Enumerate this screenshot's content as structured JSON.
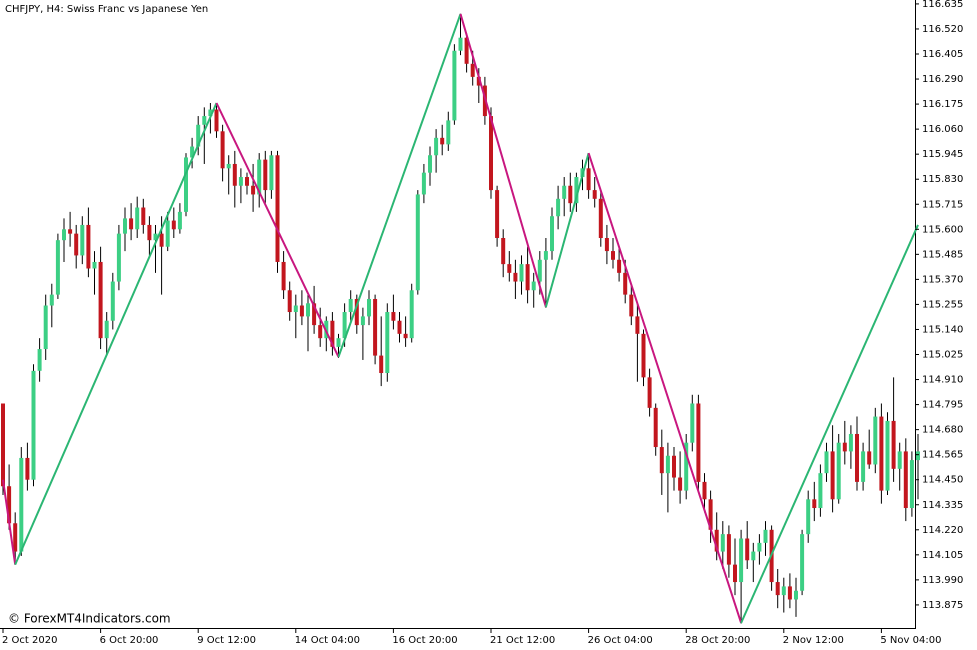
{
  "chart_data": {
    "type": "candlestick",
    "title": "CHFJPY, H4:  Swiss Franc vs Japanese Yen",
    "watermark": "© ForexMT4Indicators.com",
    "up_color": "#3ccf84",
    "down_color": "#c2161e",
    "wick_color": "#000000",
    "zigzag": {
      "up_color": "#2bb673",
      "down_color": "#c8177f",
      "x": [
        0,
        2,
        35,
        55,
        75,
        89,
        96,
        121,
        150
      ],
      "values": [
        114.45,
        114.06,
        116.18,
        115.014,
        116.589,
        115.243,
        115.95,
        113.792,
        115.62
      ]
    },
    "categories": [
      "2 Oct 2020",
      null,
      null,
      null,
      null,
      null,
      null,
      null,
      null,
      null,
      null,
      null,
      null,
      null,
      null,
      null,
      "6 Oct 20:00",
      null,
      null,
      null,
      null,
      null,
      null,
      null,
      null,
      null,
      null,
      null,
      null,
      null,
      null,
      null,
      "9 Oct 12:00",
      null,
      null,
      null,
      null,
      null,
      null,
      null,
      null,
      null,
      null,
      null,
      null,
      null,
      null,
      null,
      "14 Oct 04:00",
      null,
      null,
      null,
      null,
      null,
      null,
      null,
      null,
      null,
      null,
      null,
      null,
      null,
      null,
      null,
      "16 Oct 20:00",
      null,
      null,
      null,
      null,
      null,
      null,
      null,
      null,
      null,
      null,
      null,
      null,
      null,
      null,
      null,
      "21 Oct 12:00",
      null,
      null,
      null,
      null,
      null,
      null,
      null,
      null,
      null,
      null,
      null,
      null,
      null,
      null,
      null,
      "26 Oct 04:00",
      null,
      null,
      null,
      null,
      null,
      null,
      null,
      null,
      null,
      null,
      null,
      null,
      null,
      null,
      null,
      "28 Oct 20:00",
      null,
      null,
      null,
      null,
      null,
      null,
      null,
      null,
      null,
      null,
      null,
      null,
      null,
      null,
      null,
      "2 Nov 12:00",
      null,
      null,
      null,
      null,
      null,
      null,
      null,
      null,
      null,
      null,
      null,
      null,
      null,
      null,
      null,
      "5 Nov 04:00",
      null,
      null,
      null,
      null,
      null,
      null
    ],
    "open": [
      114.8,
      114.42,
      114.25,
      114.12,
      114.55,
      114.45,
      114.95,
      115.05,
      115.25,
      115.3,
      115.55,
      115.6,
      115.58,
      115.48,
      115.62,
      115.42,
      115.45,
      115.1,
      115.18,
      115.36,
      115.58,
      115.65,
      115.6,
      115.7,
      115.62,
      115.55,
      115.58,
      115.52,
      115.64,
      115.6,
      115.68,
      115.93,
      115.98,
      116.08,
      116.12,
      116.15,
      116.05,
      115.88,
      115.9,
      115.8,
      115.84,
      115.8,
      115.76,
      115.92,
      115.78,
      115.94,
      115.45,
      115.32,
      115.22,
      115.25,
      115.2,
      115.26,
      115.16,
      115.1,
      115.18,
      115.06,
      115.1,
      115.22,
      115.28,
      115.16,
      115.2,
      115.28,
      115.02,
      114.94,
      115.22,
      115.18,
      115.12,
      115.1,
      115.32,
      115.76,
      115.86,
      115.94,
      116.02,
      115.99,
      116.1,
      116.42,
      116.48,
      116.36,
      116.3,
      116.26,
      116.12,
      115.78,
      115.56,
      115.44,
      115.4,
      115.36,
      115.44,
      115.32,
      115.36,
      115.46,
      115.5,
      115.66,
      115.74,
      115.8,
      115.72,
      115.84,
      115.88,
      115.78,
      115.74,
      115.56,
      115.5,
      115.46,
      115.4,
      115.3,
      115.2,
      115.12,
      114.92,
      114.78,
      114.6,
      114.48,
      114.56,
      114.46,
      114.4,
      114.62,
      114.8,
      114.44,
      114.36,
      114.22,
      114.12,
      114.2,
      114.06,
      113.98,
      114.18,
      114.08,
      114.12,
      114.16,
      114.22,
      113.98,
      113.92,
      113.96,
      113.9,
      113.94,
      114.2,
      114.36,
      114.32,
      114.48,
      114.58,
      114.36,
      114.62,
      114.58,
      114.66,
      114.44,
      114.58,
      114.52,
      114.74,
      114.4,
      114.72,
      114.5,
      114.58,
      114.32,
      114.54
    ],
    "high": [
      114.8,
      114.52,
      114.3,
      114.6,
      114.62,
      114.98,
      115.1,
      115.3,
      115.35,
      115.58,
      115.65,
      115.68,
      115.62,
      115.66,
      115.7,
      115.5,
      115.52,
      115.22,
      115.4,
      115.62,
      115.7,
      115.72,
      115.75,
      115.74,
      115.66,
      115.62,
      115.66,
      115.68,
      115.7,
      115.72,
      115.95,
      116.02,
      116.12,
      116.16,
      116.18,
      116.18,
      116.08,
      115.94,
      115.96,
      115.88,
      115.86,
      115.9,
      115.95,
      115.96,
      115.96,
      115.96,
      115.5,
      115.36,
      115.3,
      115.32,
      115.3,
      115.34,
      115.24,
      115.2,
      115.22,
      115.12,
      115.26,
      115.32,
      115.3,
      115.24,
      115.32,
      115.3,
      115.2,
      115.26,
      115.3,
      115.22,
      115.2,
      115.35,
      115.78,
      115.9,
      115.98,
      116.06,
      116.08,
      116.14,
      116.45,
      116.59,
      116.5,
      116.42,
      116.34,
      116.3,
      116.16,
      115.8,
      115.6,
      115.5,
      115.46,
      115.48,
      115.52,
      115.4,
      115.5,
      115.56,
      115.7,
      115.8,
      115.84,
      115.86,
      115.86,
      115.92,
      115.95,
      115.84,
      115.78,
      115.62,
      115.56,
      115.52,
      115.46,
      115.34,
      115.26,
      115.14,
      114.96,
      114.8,
      114.68,
      114.62,
      114.6,
      114.58,
      114.66,
      114.84,
      114.84,
      114.48,
      114.4,
      114.3,
      114.26,
      114.24,
      114.18,
      114.22,
      114.26,
      114.16,
      114.2,
      114.26,
      114.24,
      114.04,
      114.0,
      114.02,
      114.0,
      114.22,
      114.4,
      114.44,
      114.52,
      114.62,
      114.7,
      114.66,
      114.72,
      114.7,
      114.74,
      114.62,
      114.68,
      114.78,
      114.8,
      114.76,
      114.92,
      114.62,
      114.64,
      114.58,
      114.66
    ],
    "low": [
      114.38,
      114.22,
      114.06,
      114.1,
      114.4,
      114.42,
      114.9,
      115.0,
      115.15,
      115.28,
      115.45,
      115.52,
      115.42,
      115.44,
      115.38,
      115.3,
      115.05,
      115.02,
      115.14,
      115.32,
      115.5,
      115.55,
      115.56,
      115.58,
      115.48,
      115.4,
      115.3,
      115.5,
      115.56,
      115.58,
      115.66,
      115.88,
      115.94,
      115.9,
      116.04,
      116.02,
      115.82,
      115.76,
      115.7,
      115.72,
      115.76,
      115.68,
      115.7,
      115.72,
      115.74,
      115.4,
      115.28,
      115.18,
      115.1,
      115.16,
      115.04,
      115.12,
      115.06,
      115.04,
      115.02,
      115.01,
      115.06,
      115.18,
      115.12,
      115.0,
      115.16,
      114.98,
      114.88,
      114.9,
      115.14,
      115.08,
      115.06,
      115.08,
      115.3,
      115.72,
      115.8,
      115.86,
      115.94,
      115.96,
      116.08,
      116.4,
      116.32,
      116.26,
      116.18,
      116.08,
      115.74,
      115.52,
      115.38,
      115.36,
      115.28,
      115.3,
      115.26,
      115.24,
      115.3,
      115.24,
      115.46,
      115.6,
      115.66,
      115.68,
      115.68,
      115.78,
      115.74,
      115.7,
      115.52,
      115.44,
      115.42,
      115.36,
      115.26,
      115.16,
      114.9,
      114.88,
      114.74,
      114.56,
      114.38,
      114.3,
      114.4,
      114.34,
      114.36,
      114.58,
      114.4,
      114.3,
      114.16,
      114.08,
      114.04,
      114.0,
      113.92,
      113.79,
      114.04,
      113.98,
      114.06,
      114.1,
      113.94,
      113.86,
      113.84,
      113.86,
      113.82,
      113.92,
      114.16,
      114.26,
      114.28,
      114.44,
      114.3,
      114.34,
      114.52,
      114.5,
      114.4,
      114.4,
      114.5,
      114.48,
      114.34,
      114.38,
      114.44,
      114.4,
      114.26,
      114.28,
      114.36
    ],
    "close": [
      114.42,
      114.25,
      114.12,
      114.55,
      114.45,
      114.95,
      115.05,
      115.25,
      115.3,
      115.55,
      115.6,
      115.58,
      115.48,
      115.62,
      115.42,
      115.45,
      115.1,
      115.18,
      115.36,
      115.58,
      115.65,
      115.6,
      115.7,
      115.62,
      115.55,
      115.58,
      115.52,
      115.64,
      115.6,
      115.68,
      115.93,
      115.98,
      116.08,
      116.12,
      116.15,
      116.05,
      115.88,
      115.9,
      115.8,
      115.84,
      115.8,
      115.76,
      115.92,
      115.78,
      115.94,
      115.45,
      115.32,
      115.22,
      115.25,
      115.2,
      115.26,
      115.16,
      115.1,
      115.18,
      115.06,
      115.1,
      115.22,
      115.28,
      115.16,
      115.2,
      115.28,
      115.02,
      114.94,
      115.22,
      115.18,
      115.12,
      115.1,
      115.32,
      115.76,
      115.86,
      115.94,
      116.02,
      115.99,
      116.1,
      116.42,
      116.48,
      116.36,
      116.3,
      116.26,
      116.12,
      115.78,
      115.56,
      115.44,
      115.4,
      115.36,
      115.44,
      115.32,
      115.36,
      115.46,
      115.5,
      115.66,
      115.74,
      115.8,
      115.72,
      115.84,
      115.88,
      115.78,
      115.74,
      115.56,
      115.5,
      115.46,
      115.4,
      115.3,
      115.2,
      115.12,
      114.92,
      114.78,
      114.6,
      114.48,
      114.56,
      114.46,
      114.4,
      114.62,
      114.8,
      114.44,
      114.36,
      114.22,
      114.12,
      114.2,
      114.06,
      113.98,
      114.18,
      114.08,
      114.12,
      114.16,
      114.22,
      113.98,
      113.92,
      113.96,
      113.9,
      113.94,
      114.2,
      114.36,
      114.32,
      114.48,
      114.58,
      114.36,
      114.62,
      114.58,
      114.66,
      114.44,
      114.58,
      114.52,
      114.74,
      114.4,
      114.72,
      114.5,
      114.58,
      114.32,
      114.54,
      114.58
    ],
    "ylim": [
      113.769,
      116.653
    ],
    "yticks": [
      116.635,
      {
        "value": 116.52,
        "label": "116.520"
      },
      116.405,
      {
        "value": 116.29,
        "label": "116.290"
      },
      116.175,
      {
        "value": 116.06,
        "label": "116.060"
      },
      115.945,
      {
        "value": 115.83,
        "label": "115.830"
      },
      115.715,
      {
        "value": 115.6,
        "label": "115.600"
      },
      115.485,
      {
        "value": 115.37,
        "label": "115.370"
      },
      115.255,
      {
        "value": 115.14,
        "label": "115.140"
      },
      115.025,
      {
        "value": 114.91,
        "label": "114.910"
      },
      114.795,
      {
        "value": 114.68,
        "label": "114.680"
      },
      114.565,
      {
        "value": 114.45,
        "label": "114.450"
      },
      114.335,
      {
        "value": 114.22,
        "label": "114.220"
      },
      114.105,
      {
        "value": 113.99,
        "label": "113.990"
      },
      113.875
    ],
    "grid": false
  }
}
